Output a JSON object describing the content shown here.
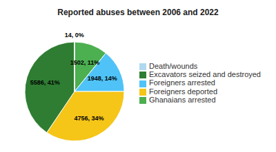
{
  "chart_data": {
    "type": "pie",
    "title": "Reported abuses between 2006 and 2022",
    "categories": [
      "Ghanaians arrested",
      "Foreigners arrested",
      "Foreigners deported",
      "Excavators seized and destroyed",
      "Death/wounds"
    ],
    "values": [
      1502,
      1948,
      4756,
      5586,
      14
    ],
    "value_labels": [
      "1502, 11%",
      "1948, 14%",
      "4756, 34%",
      "5586, 41%",
      "14, 0%"
    ],
    "colors": [
      "#4caf50",
      "#4fc3f7",
      "#f5c518",
      "#2e7d32",
      "#b0d8f0"
    ],
    "legend": "right"
  }
}
